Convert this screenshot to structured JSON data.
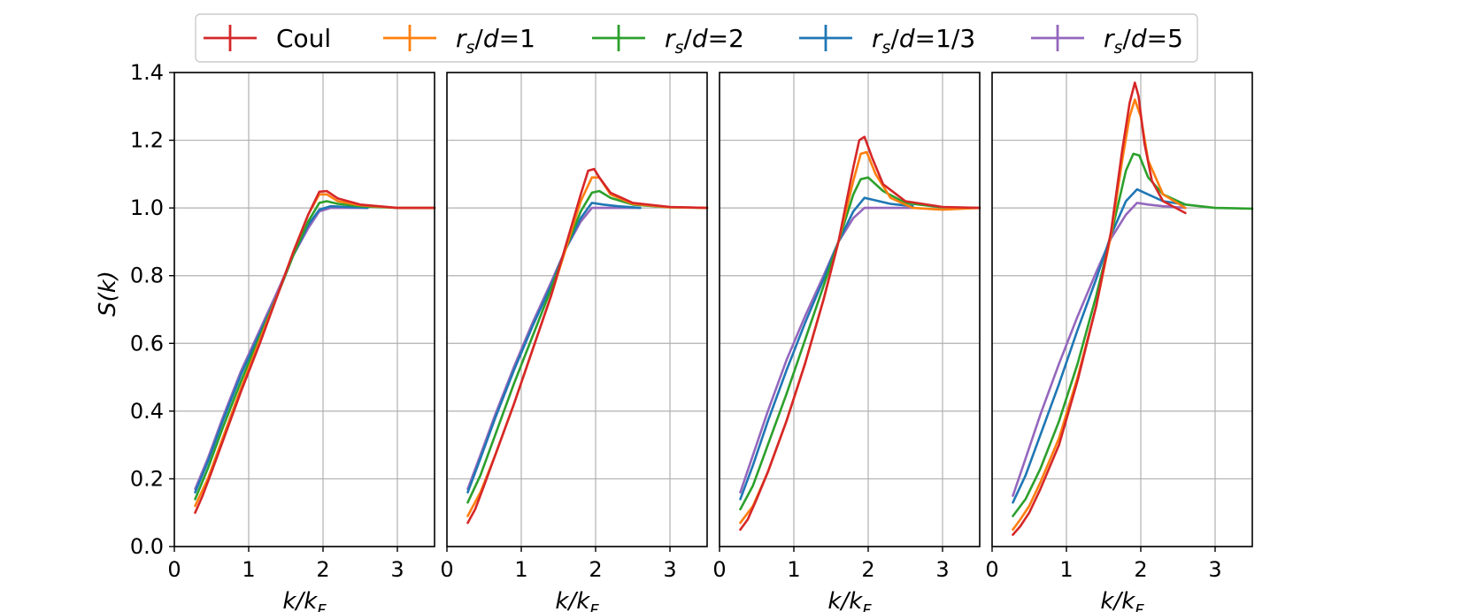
{
  "chart_data": {
    "type": "line",
    "layout": "1x4 panels, shared y-axis",
    "legend": {
      "placement": "top-center",
      "entries": [
        {
          "id": "coul",
          "label": "Coul",
          "color": "#d62728"
        },
        {
          "id": "rs1",
          "label_parts": [
            "r",
            "s",
            "/d=1"
          ],
          "color": "#ff7f0e"
        },
        {
          "id": "rs2",
          "label_parts": [
            "r",
            "s",
            "/d=2"
          ],
          "color": "#2ca02c"
        },
        {
          "id": "rs13",
          "label_parts": [
            "r",
            "s",
            "/d=1/3"
          ],
          "color": "#1f77b4"
        },
        {
          "id": "rs5",
          "label_parts": [
            "r",
            "s",
            "/d=5"
          ],
          "color": "#9467bd"
        }
      ]
    },
    "ylabel": "S(k)",
    "xlabel": "k/k_F",
    "xlabel_parts": [
      "k/k",
      "F"
    ],
    "xlim": [
      0,
      3.5
    ],
    "ylim": [
      0,
      1.4
    ],
    "xticks": [
      0,
      1,
      2,
      3
    ],
    "yticks": [
      0.0,
      0.2,
      0.4,
      0.6,
      0.8,
      1.0,
      1.2,
      1.4
    ],
    "ytick_labels": [
      "0.0",
      "0.2",
      "0.4",
      "0.6",
      "0.8",
      "1.0",
      "1.2",
      "1.4"
    ],
    "grid": true,
    "panels": [
      {
        "series": [
          {
            "id": "rs5",
            "x": [
              0.28,
              0.45,
              0.65,
              0.9,
              1.15,
              1.4,
              1.6,
              1.8,
              1.95,
              2.1,
              2.3,
              2.6
            ],
            "y": [
              0.17,
              0.26,
              0.38,
              0.52,
              0.64,
              0.76,
              0.86,
              0.94,
              0.99,
              1.0,
              1.0,
              1.0
            ]
          },
          {
            "id": "rs13",
            "x": [
              0.28,
              0.45,
              0.65,
              0.9,
              1.15,
              1.4,
              1.6,
              1.8,
              1.95,
              2.1,
              2.3,
              2.6
            ],
            "y": [
              0.16,
              0.25,
              0.37,
              0.51,
              0.63,
              0.75,
              0.86,
              0.95,
              0.995,
              1.005,
              1.003,
              1.0
            ]
          },
          {
            "id": "rs2",
            "x": [
              0.28,
              0.45,
              0.65,
              0.9,
              1.15,
              1.4,
              1.6,
              1.8,
              1.95,
              2.05,
              2.2,
              2.5,
              3.0,
              3.5
            ],
            "y": [
              0.14,
              0.23,
              0.35,
              0.49,
              0.62,
              0.75,
              0.86,
              0.96,
              1.015,
              1.02,
              1.012,
              1.005,
              1.0,
              1.0
            ]
          },
          {
            "id": "rs1",
            "x": [
              0.28,
              0.45,
              0.65,
              0.9,
              1.15,
              1.4,
              1.6,
              1.8,
              1.95,
              2.05,
              2.2,
              2.5,
              3.0,
              3.5
            ],
            "y": [
              0.12,
              0.2,
              0.32,
              0.47,
              0.61,
              0.75,
              0.87,
              0.98,
              1.04,
              1.04,
              1.02,
              1.008,
              1.0,
              1.0
            ]
          },
          {
            "id": "coul",
            "x": [
              0.28,
              0.38,
              0.5,
              0.65,
              0.9,
              1.15,
              1.4,
              1.6,
              1.8,
              1.95,
              2.05,
              2.2,
              2.5,
              3.0,
              3.5
            ],
            "y": [
              0.1,
              0.15,
              0.22,
              0.31,
              0.46,
              0.6,
              0.75,
              0.87,
              0.98,
              1.048,
              1.05,
              1.028,
              1.01,
              1.0,
              1.0
            ]
          }
        ]
      },
      {
        "series": [
          {
            "id": "rs5",
            "x": [
              0.28,
              0.45,
              0.65,
              0.9,
              1.15,
              1.4,
              1.6,
              1.8,
              1.95,
              2.1,
              2.3,
              2.6
            ],
            "y": [
              0.17,
              0.27,
              0.39,
              0.53,
              0.66,
              0.78,
              0.88,
              0.96,
              1.0,
              1.0,
              1.0,
              1.0
            ]
          },
          {
            "id": "rs13",
            "x": [
              0.28,
              0.45,
              0.65,
              0.9,
              1.15,
              1.4,
              1.6,
              1.8,
              1.95,
              2.1,
              2.3,
              2.6
            ],
            "y": [
              0.16,
              0.26,
              0.38,
              0.52,
              0.65,
              0.77,
              0.88,
              0.97,
              1.015,
              1.01,
              1.005,
              1.0
            ]
          },
          {
            "id": "rs2",
            "x": [
              0.28,
              0.45,
              0.65,
              0.9,
              1.15,
              1.4,
              1.6,
              1.8,
              1.95,
              2.05,
              2.2,
              2.5,
              3.0,
              3.5
            ],
            "y": [
              0.13,
              0.21,
              0.33,
              0.48,
              0.62,
              0.76,
              0.88,
              0.99,
              1.045,
              1.05,
              1.03,
              1.01,
              1.002,
              1.0
            ]
          },
          {
            "id": "rs1",
            "x": [
              0.28,
              0.45,
              0.65,
              0.9,
              1.15,
              1.4,
              1.6,
              1.8,
              1.95,
              2.05,
              2.2,
              2.5,
              3.0,
              3.5
            ],
            "y": [
              0.09,
              0.16,
              0.27,
              0.42,
              0.58,
              0.74,
              0.88,
              1.02,
              1.09,
              1.09,
              1.04,
              1.012,
              1.002,
              1.0
            ]
          },
          {
            "id": "coul",
            "x": [
              0.28,
              0.38,
              0.5,
              0.65,
              0.9,
              1.15,
              1.4,
              1.6,
              1.8,
              1.9,
              1.98,
              2.05,
              2.2,
              2.5,
              3.0,
              3.5
            ],
            "y": [
              0.07,
              0.11,
              0.18,
              0.27,
              0.42,
              0.58,
              0.74,
              0.89,
              1.04,
              1.11,
              1.115,
              1.09,
              1.045,
              1.015,
              1.003,
              1.0
            ]
          }
        ]
      },
      {
        "series": [
          {
            "id": "rs5",
            "x": [
              0.28,
              0.45,
              0.65,
              0.9,
              1.15,
              1.4,
              1.6,
              1.8,
              1.95,
              2.1,
              2.3,
              2.6
            ],
            "y": [
              0.16,
              0.27,
              0.4,
              0.55,
              0.68,
              0.8,
              0.9,
              0.97,
              1.0,
              1.0,
              1.0,
              1.0
            ]
          },
          {
            "id": "rs13",
            "x": [
              0.28,
              0.45,
              0.65,
              0.9,
              1.15,
              1.4,
              1.6,
              1.8,
              1.95,
              2.05,
              2.3,
              2.6
            ],
            "y": [
              0.14,
              0.24,
              0.37,
              0.52,
              0.66,
              0.79,
              0.9,
              0.99,
              1.03,
              1.025,
              1.012,
              1.005
            ]
          },
          {
            "id": "rs2",
            "x": [
              0.28,
              0.45,
              0.65,
              0.9,
              1.15,
              1.4,
              1.6,
              1.8,
              1.9,
              2.0,
              2.2,
              2.5,
              3.0,
              3.5
            ],
            "y": [
              0.11,
              0.18,
              0.3,
              0.45,
              0.61,
              0.77,
              0.9,
              1.04,
              1.085,
              1.09,
              1.05,
              1.015,
              1.002,
              1.0
            ]
          },
          {
            "id": "rs1",
            "x": [
              0.28,
              0.45,
              0.65,
              0.9,
              1.15,
              1.4,
              1.6,
              1.8,
              1.9,
              1.98,
              2.1,
              2.3,
              2.6,
              3.0,
              3.5
            ],
            "y": [
              0.07,
              0.12,
              0.22,
              0.37,
              0.54,
              0.73,
              0.9,
              1.08,
              1.16,
              1.165,
              1.1,
              1.03,
              1.0,
              0.995,
              1.0
            ]
          },
          {
            "id": "coul",
            "x": [
              0.28,
              0.38,
              0.5,
              0.65,
              0.9,
              1.15,
              1.4,
              1.6,
              1.8,
              1.88,
              1.95,
              2.05,
              2.2,
              2.5,
              3.0,
              3.5
            ],
            "y": [
              0.05,
              0.08,
              0.14,
              0.22,
              0.37,
              0.54,
              0.73,
              0.9,
              1.12,
              1.2,
              1.21,
              1.15,
              1.07,
              1.02,
              1.003,
              1.0
            ]
          }
        ]
      },
      {
        "series": [
          {
            "id": "rs5",
            "x": [
              0.28,
              0.45,
              0.65,
              0.9,
              1.15,
              1.4,
              1.6,
              1.8,
              1.95,
              2.1,
              2.3,
              2.6
            ],
            "y": [
              0.15,
              0.26,
              0.39,
              0.54,
              0.68,
              0.81,
              0.91,
              0.98,
              1.015,
              1.01,
              1.005,
              1.0
            ]
          },
          {
            "id": "rs13",
            "x": [
              0.28,
              0.45,
              0.65,
              0.9,
              1.15,
              1.4,
              1.6,
              1.8,
              1.95,
              2.05,
              2.3,
              2.6
            ],
            "y": [
              0.13,
              0.21,
              0.33,
              0.48,
              0.64,
              0.79,
              0.92,
              1.02,
              1.055,
              1.045,
              1.02,
              1.01
            ]
          },
          {
            "id": "rs2",
            "x": [
              0.28,
              0.45,
              0.65,
              0.9,
              1.15,
              1.4,
              1.6,
              1.8,
              1.9,
              1.98,
              2.1,
              2.3,
              2.6,
              3.0,
              3.5
            ],
            "y": [
              0.09,
              0.14,
              0.23,
              0.37,
              0.54,
              0.74,
              0.92,
              1.11,
              1.16,
              1.155,
              1.09,
              1.04,
              1.01,
              1.0,
              0.998
            ]
          },
          {
            "id": "rs1",
            "x": [
              0.28,
              0.38,
              0.5,
              0.65,
              0.9,
              1.15,
              1.4,
              1.6,
              1.75,
              1.85,
              1.92,
              2.0,
              2.1,
              2.3,
              2.6
            ],
            "y": [
              0.05,
              0.08,
              0.12,
              0.19,
              0.32,
              0.5,
              0.71,
              0.92,
              1.14,
              1.27,
              1.32,
              1.27,
              1.14,
              1.04,
              1.0
            ]
          },
          {
            "id": "coul",
            "x": [
              0.28,
              0.38,
              0.5,
              0.65,
              0.9,
              1.15,
              1.4,
              1.6,
              1.75,
              1.85,
              1.92,
              1.97,
              2.05,
              2.15,
              2.3,
              2.6
            ],
            "y": [
              0.035,
              0.06,
              0.1,
              0.17,
              0.3,
              0.49,
              0.71,
              0.93,
              1.17,
              1.31,
              1.37,
              1.33,
              1.19,
              1.08,
              1.02,
              0.985
            ]
          }
        ]
      }
    ]
  }
}
